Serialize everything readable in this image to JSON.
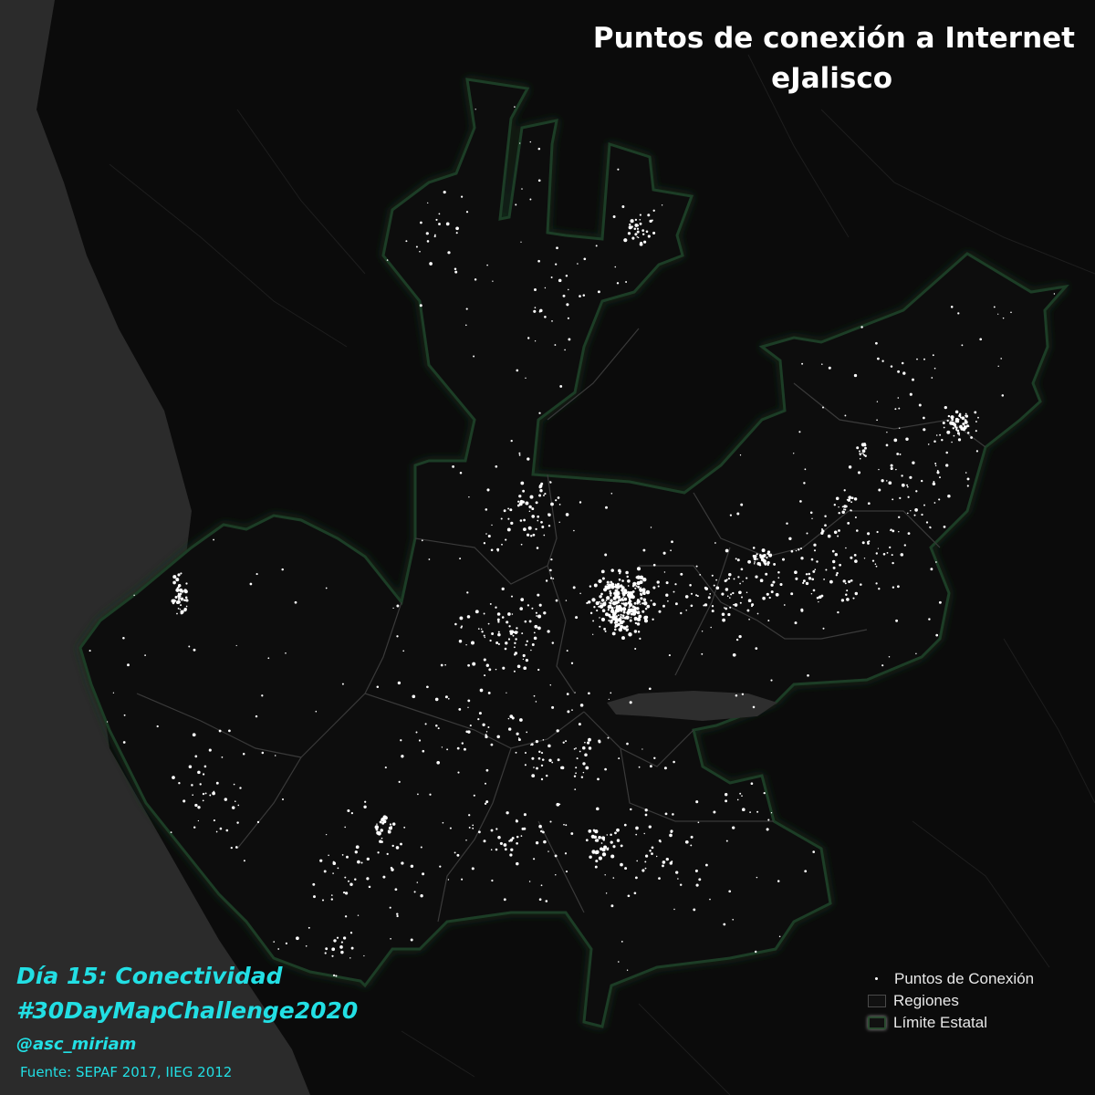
{
  "title": {
    "line1": "Puntos de conexión a Internet",
    "line2": "eJalisco"
  },
  "captions": {
    "day": "Día 15: Conectividad",
    "hashtag": "#30DayMapChallenge2020",
    "author": "@asc_miriam",
    "source": "Fuente: SEPAF 2017, IIEG 2012"
  },
  "legend": {
    "points": "Puntos de Conexión",
    "regions": "Regiones",
    "state_limit": "Límite Estatal"
  },
  "colors": {
    "background": "#0b0b0b",
    "ocean": "#2b2b2b",
    "land": "#0d0d0d",
    "state_border": "#1f3d26",
    "region_border": "#3a3a3a",
    "points": "#ffffff",
    "caption_accent": "#22dfe4",
    "lake": "#2e2e2e"
  }
}
